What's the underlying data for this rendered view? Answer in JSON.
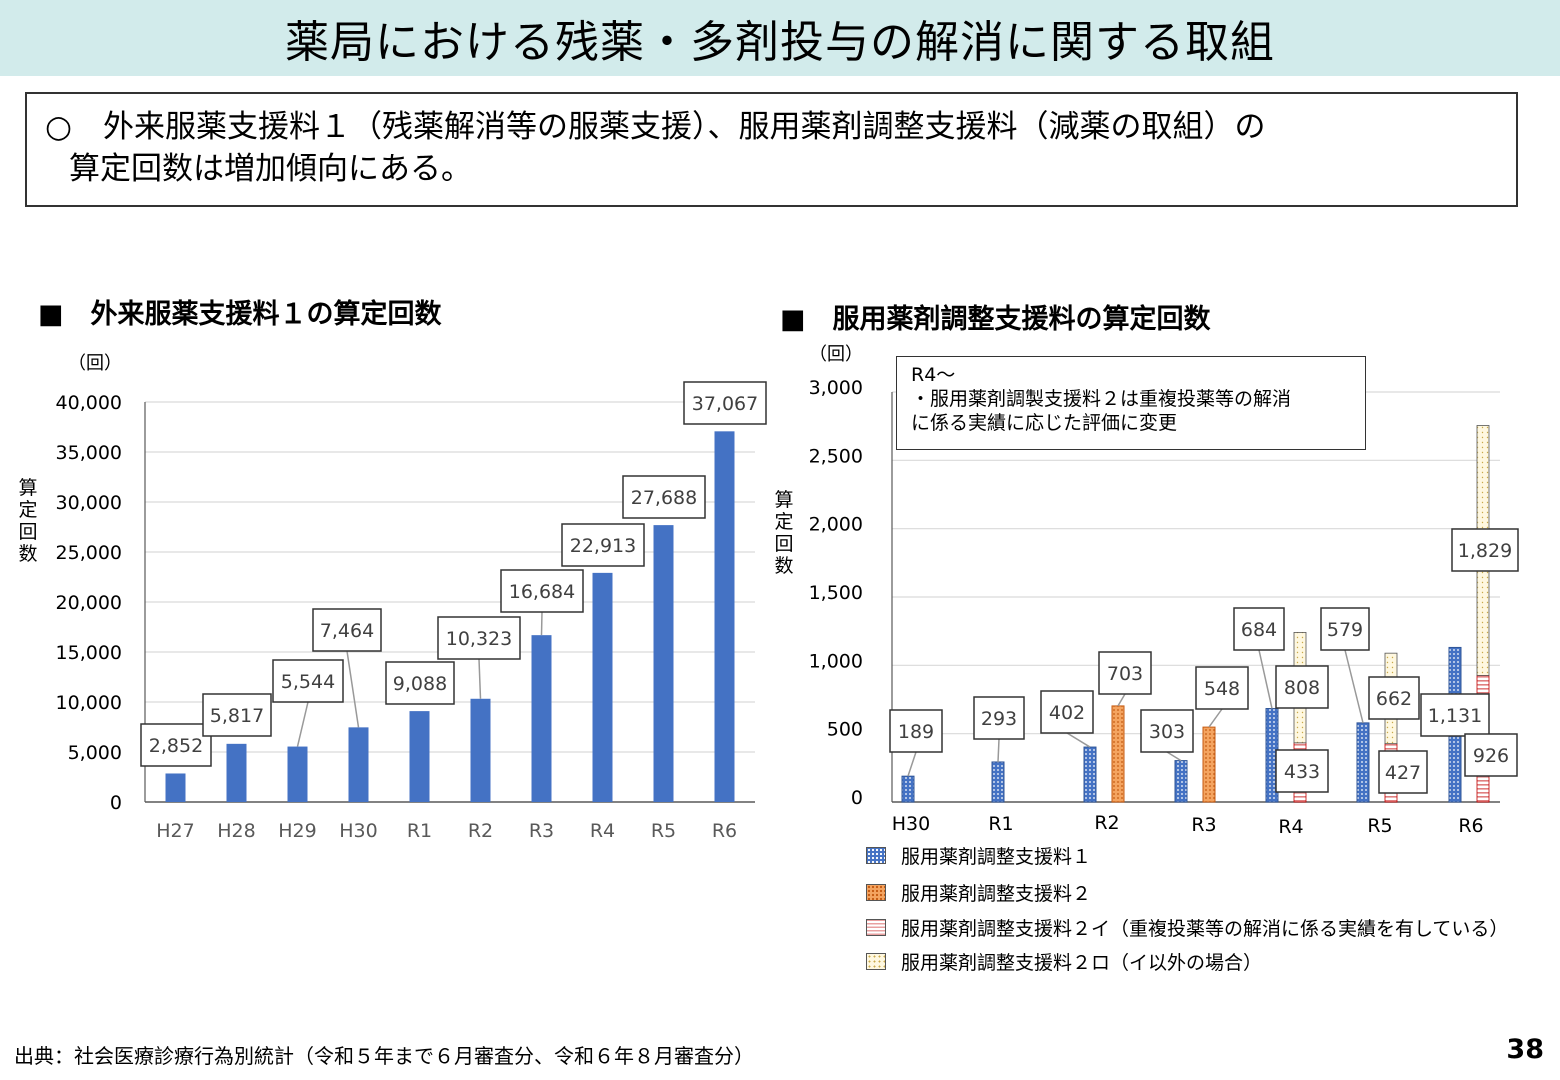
{
  "title": "薬局における残薬・多剤投与の解消に関する取組",
  "summary": {
    "line1": "○　外来服薬支援料１（残薬解消等の服薬支援）、服用薬剤調整支援料（減薬の取組）の",
    "line2": "算定回数は増加傾向にある。"
  },
  "left_section_title": "■　外来服薬支援料１の算定回数",
  "right_section_title": "■　服用薬剤調整支援料の算定回数",
  "note": {
    "line1": "R4～",
    "line2": "・服用薬剤調製支援料２は重複投薬等の解消",
    "line3": "に係る実績に応じた評価に変更"
  },
  "source": "出典：社会医療診療行為別統計（令和５年まで６月審査分、令和６年８月審査分）",
  "page_number": "38",
  "colors": {
    "title_bg": "#d2ebeb",
    "bar_blue": "#4472c4",
    "orange": "#f4a460",
    "red": "#e8a0a0",
    "cream": "#fff8e0"
  },
  "chart_data": [
    {
      "type": "bar",
      "title": "外来服薬支援料１の算定回数",
      "unit_label": "（回）",
      "ylabel": "算定回数",
      "categories": [
        "H27",
        "H28",
        "H29",
        "H30",
        "R1",
        "R2",
        "R3",
        "R4",
        "R5",
        "R6"
      ],
      "values": [
        2852,
        5817,
        5544,
        7464,
        9088,
        10323,
        16684,
        22913,
        27688,
        37067
      ],
      "data_labels": [
        "2,852",
        "5,817",
        "5,544",
        "7,464",
        "9,088",
        "10,323",
        "16,684",
        "22,913",
        "27,688",
        "37,067"
      ],
      "yticks": [
        "0",
        "5,000",
        "10,000",
        "15,000",
        "20,000",
        "25,000",
        "30,000",
        "35,000",
        "40,000"
      ],
      "ylim": [
        0,
        40000
      ],
      "grid": true
    },
    {
      "type": "bar",
      "title": "服用薬剤調整支援料の算定回数",
      "unit_label": "（回）",
      "ylabel": "算定回数",
      "categories": [
        "H30",
        "R1",
        "R2",
        "R3",
        "R4",
        "R5",
        "R6"
      ],
      "yticks": [
        "0",
        "500",
        "1,000",
        "1,500",
        "2,000",
        "2,500",
        "3,000"
      ],
      "ylim": [
        0,
        3000
      ],
      "grid": true,
      "series": [
        {
          "name": "服用薬剤調整支援料１",
          "values": [
            189,
            293,
            402,
            303,
            684,
            579,
            1131
          ],
          "labels": [
            "189",
            "293",
            "402",
            "303",
            "684",
            "579",
            "1,131"
          ]
        },
        {
          "name": "服用薬剤調整支援料２",
          "values": [
            null,
            null,
            703,
            548,
            null,
            null,
            null
          ],
          "labels": [
            "",
            "",
            "703",
            "548",
            "",
            "",
            ""
          ]
        },
        {
          "name": "服用薬剤調整支援料２イ（重複投薬等の解消に係る実績を有している）",
          "values": [
            null,
            null,
            null,
            null,
            433,
            427,
            926
          ],
          "labels": [
            "",
            "",
            "",
            "",
            "433",
            "427",
            "926"
          ]
        },
        {
          "name": "服用薬剤調整支援料２ロ（イ以外の場合）",
          "values": [
            null,
            null,
            null,
            null,
            808,
            662,
            1829
          ],
          "labels": [
            "",
            "",
            "",
            "",
            "808",
            "662",
            "1,829"
          ]
        }
      ]
    }
  ]
}
